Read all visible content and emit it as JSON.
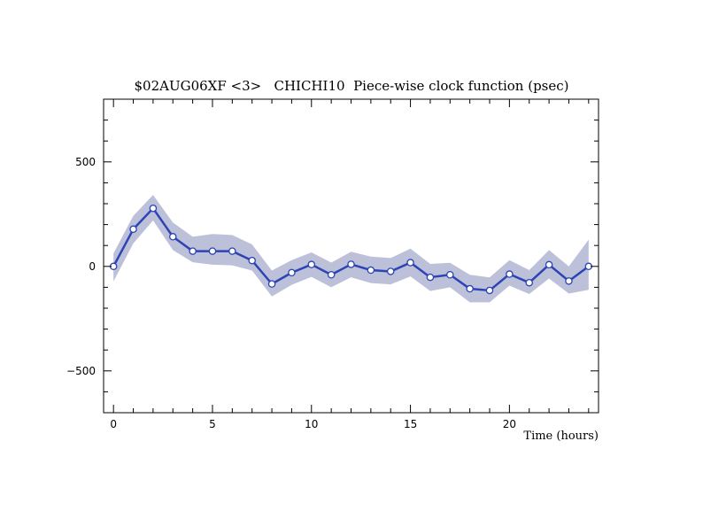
{
  "chart_data": {
    "type": "line",
    "title": "$02AUG06XF <3>   CHICHI10  Piece-wise clock function (psec)",
    "xlabel": "Time (hours)",
    "ylabel": "",
    "xlim": [
      -0.5,
      24.5
    ],
    "ylim": [
      -700,
      800
    ],
    "x_ticks": [
      0,
      5,
      10,
      15,
      20
    ],
    "y_ticks": [
      -500,
      0,
      500
    ],
    "grid": false,
    "legend": "none",
    "colors": {
      "line": "#2c44b4",
      "band": "#bcc0d8",
      "marker_fill": "#ffffff"
    },
    "x": [
      0,
      1,
      2,
      3,
      4,
      5,
      6,
      7,
      8,
      9,
      10,
      11,
      12,
      13,
      14,
      15,
      16,
      17,
      18,
      19,
      20,
      21,
      22,
      23,
      24
    ],
    "series": [
      {
        "values": [
          0,
          178,
          278,
          142,
          73,
          73,
          73,
          28,
          -84,
          -30,
          9,
          -40,
          10,
          -18,
          -24,
          18,
          -52,
          -40,
          -107,
          -115,
          -37,
          -78,
          8,
          -70,
          0
        ],
        "band_upper": [
          62,
          242,
          342,
          210,
          142,
          155,
          150,
          105,
          -20,
          30,
          67,
          18,
          70,
          47,
          40,
          85,
          12,
          17,
          -40,
          -53,
          30,
          -18,
          78,
          0,
          128
        ],
        "band_lower": [
          -72,
          110,
          220,
          78,
          20,
          8,
          5,
          -20,
          -144,
          -88,
          -50,
          -100,
          -52,
          -80,
          -86,
          -48,
          -118,
          -100,
          -172,
          -172,
          -92,
          -132,
          -58,
          -130,
          -112
        ]
      }
    ]
  }
}
